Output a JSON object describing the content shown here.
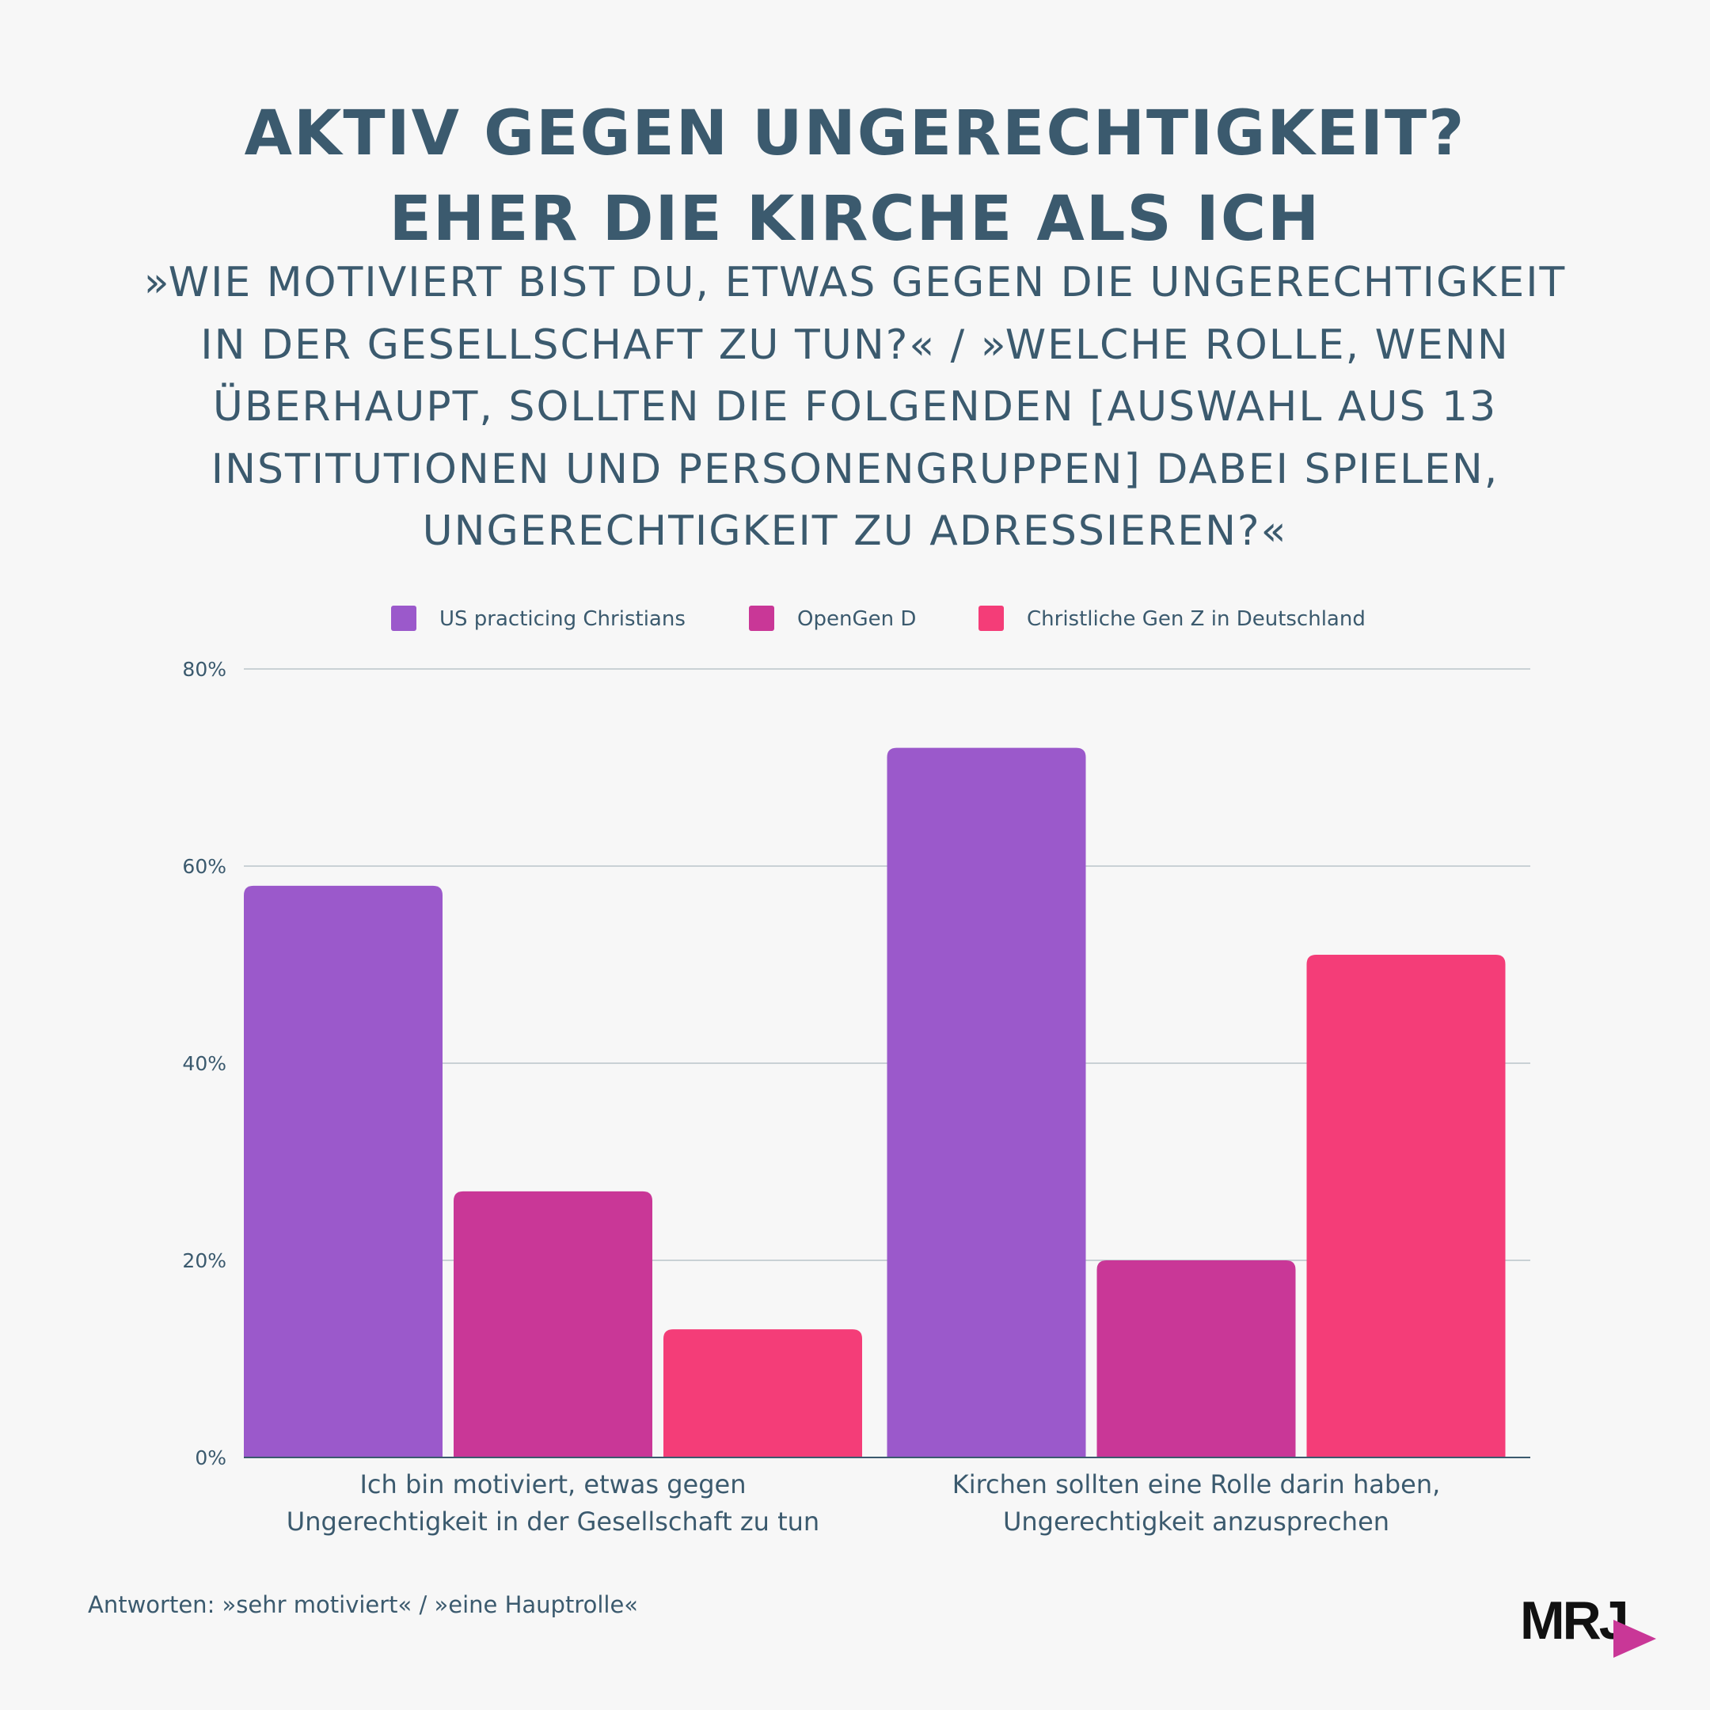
{
  "title": {
    "line1": "AKTIV GEGEN UNGERECHTIGKEIT?",
    "line2": "EHER DIE KIRCHE ALS ICH"
  },
  "subtitle": {
    "line1": "»WIE MOTIVIERT BIST DU, ETWAS GEGEN DIE UNGERECHTIGKEIT",
    "line2": "IN DER GESELLSCHAFT ZU TUN?« / »WELCHE ROLLE, WENN",
    "line3": "ÜBERHAUPT, SOLLTEN DIE FOLGENDEN [AUSWAHL AUS 13",
    "line4": "INSTITUTIONEN UND PERSONENGRUPPEN] DABEI SPIELEN,",
    "line5": "UNGERECHTIGKEIT ZU ADRESSIEREN?«"
  },
  "footnote": "Antworten: »sehr motiviert« / »eine Hauptrolle«",
  "logo": {
    "text": "MRJ"
  },
  "chart_data": {
    "type": "bar",
    "categories": [
      [
        "Ich bin motiviert, etwas gegen",
        "Ungerechtigkeit in der Gesellschaft zu tun"
      ],
      [
        "Kirchen sollten eine Rolle darin haben,",
        "Ungerechtigkeit anzusprechen"
      ]
    ],
    "series": [
      {
        "name": "US practicing Christians",
        "color": "#9b59cb",
        "values": [
          58,
          72
        ]
      },
      {
        "name": "OpenGen D",
        "color": "#c93797",
        "values": [
          27,
          20
        ]
      },
      {
        "name": "Christliche Gen Z in Deutschland",
        "color": "#f43d78",
        "values": [
          13,
          51
        ]
      }
    ],
    "ylim": [
      0,
      80
    ],
    "yticks": [
      0,
      20,
      40,
      60,
      80
    ],
    "ytick_labels": [
      "0%",
      "20%",
      "40%",
      "60%",
      "80%"
    ],
    "grid": true,
    "legend_position": "top-center",
    "xlabel": "",
    "ylabel": ""
  }
}
